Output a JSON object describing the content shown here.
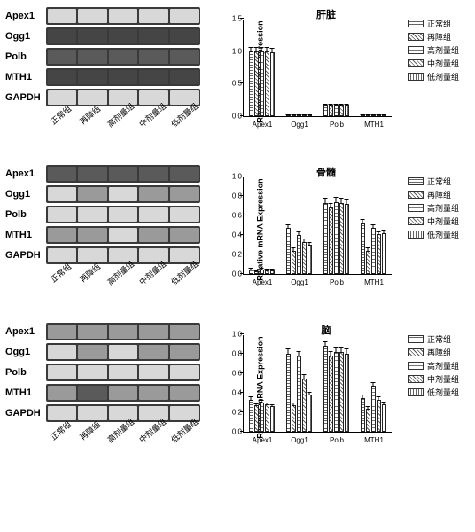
{
  "groups": [
    "正常组",
    "再障组",
    "高剂量组",
    "中剂量组",
    "低剂量组"
  ],
  "gel_labels": [
    "Apex1",
    "Ogg1",
    "Polb",
    "MTH1",
    "GAPDH"
  ],
  "genes": [
    "Apex1",
    "Ogg1",
    "Polb",
    "MTH1"
  ],
  "ylabel": "Relative mRNA Expression",
  "legend_patterns": [
    "pat-grid",
    "pat-cross",
    "pat-brick",
    "pat-diag",
    "pat-vert"
  ],
  "gel_bg": "#3a3a3a",
  "band_light": "#d8d8d8",
  "band_mid": "#9a9a9a",
  "band_faint": "#5a5a5a",
  "band_dark": "#454545",
  "text_color": "#000000",
  "background_color": "#ffffff",
  "panels": [
    {
      "name": "liver",
      "title": "肝脏",
      "ylim": [
        0,
        1.5
      ],
      "ytick_step": 0.5,
      "gel_intensity": {
        "Apex1": [
          0.9,
          0.9,
          0.9,
          0.9,
          0.9
        ],
        "Ogg1": [
          0.05,
          0.05,
          0.05,
          0.05,
          0.05
        ],
        "Polb": [
          0.35,
          0.35,
          0.35,
          0.35,
          0.35
        ],
        "MTH1": [
          0.05,
          0.05,
          0.05,
          0.05,
          0.05
        ],
        "GAPDH": [
          0.95,
          0.95,
          0.95,
          0.95,
          0.95
        ]
      },
      "values": {
        "Apex1": [
          1.0,
          1.0,
          1.0,
          1.0,
          0.98
        ],
        "Ogg1": [
          0.02,
          0.02,
          0.02,
          0.02,
          0.02
        ],
        "Polb": [
          0.18,
          0.18,
          0.18,
          0.18,
          0.18
        ],
        "MTH1": [
          0.02,
          0.02,
          0.02,
          0.02,
          0.02
        ]
      },
      "errors": {
        "Apex1": [
          0.08,
          0.08,
          0.08,
          0.08,
          0.08
        ],
        "Ogg1": [
          0.01,
          0.01,
          0.01,
          0.01,
          0.01
        ],
        "Polb": [
          0.03,
          0.03,
          0.03,
          0.03,
          0.03
        ],
        "MTH1": [
          0.01,
          0.01,
          0.01,
          0.01,
          0.01
        ]
      }
    },
    {
      "name": "bone-marrow",
      "title": "骨髓",
      "ylim": [
        0,
        1.0
      ],
      "ytick_step": 0.2,
      "gel_intensity": {
        "Apex1": [
          0.35,
          0.3,
          0.35,
          0.3,
          0.3
        ],
        "Ogg1": [
          0.8,
          0.55,
          0.85,
          0.6,
          0.6
        ],
        "Polb": [
          0.85,
          0.8,
          0.85,
          0.8,
          0.8
        ],
        "MTH1": [
          0.7,
          0.45,
          0.75,
          0.5,
          0.55
        ],
        "GAPDH": [
          0.9,
          0.85,
          0.9,
          0.85,
          0.85
        ]
      },
      "values": {
        "Apex1": [
          0.05,
          0.03,
          0.05,
          0.04,
          0.04
        ],
        "Ogg1": [
          0.47,
          0.24,
          0.4,
          0.33,
          0.3
        ],
        "Polb": [
          0.73,
          0.68,
          0.74,
          0.73,
          0.72
        ],
        "MTH1": [
          0.52,
          0.24,
          0.47,
          0.41,
          0.42
        ]
      },
      "errors": {
        "Apex1": [
          0.02,
          0.02,
          0.02,
          0.02,
          0.02
        ],
        "Ogg1": [
          0.05,
          0.04,
          0.05,
          0.04,
          0.04
        ],
        "Polb": [
          0.06,
          0.06,
          0.06,
          0.06,
          0.06
        ],
        "MTH1": [
          0.05,
          0.04,
          0.05,
          0.04,
          0.04
        ]
      }
    },
    {
      "name": "brain",
      "title": "脑",
      "ylim": [
        0,
        1.0
      ],
      "ytick_step": 0.2,
      "gel_intensity": {
        "Apex1": [
          0.55,
          0.45,
          0.55,
          0.5,
          0.45
        ],
        "Ogg1": [
          0.9,
          0.55,
          0.9,
          0.7,
          0.55
        ],
        "Polb": [
          0.9,
          0.85,
          0.9,
          0.88,
          0.85
        ],
        "MTH1": [
          0.6,
          0.4,
          0.65,
          0.5,
          0.45
        ],
        "GAPDH": [
          0.92,
          0.9,
          0.92,
          0.9,
          0.9
        ]
      },
      "values": {
        "Apex1": [
          0.33,
          0.27,
          0.3,
          0.28,
          0.26
        ],
        "Ogg1": [
          0.8,
          0.27,
          0.78,
          0.55,
          0.38
        ],
        "Polb": [
          0.88,
          0.78,
          0.82,
          0.82,
          0.8
        ],
        "MTH1": [
          0.35,
          0.24,
          0.47,
          0.33,
          0.28
        ]
      },
      "errors": {
        "Apex1": [
          0.04,
          0.03,
          0.04,
          0.03,
          0.03
        ],
        "Ogg1": [
          0.06,
          0.04,
          0.06,
          0.05,
          0.04
        ],
        "Polb": [
          0.06,
          0.06,
          0.06,
          0.06,
          0.06
        ],
        "MTH1": [
          0.04,
          0.03,
          0.05,
          0.04,
          0.04
        ]
      }
    }
  ]
}
